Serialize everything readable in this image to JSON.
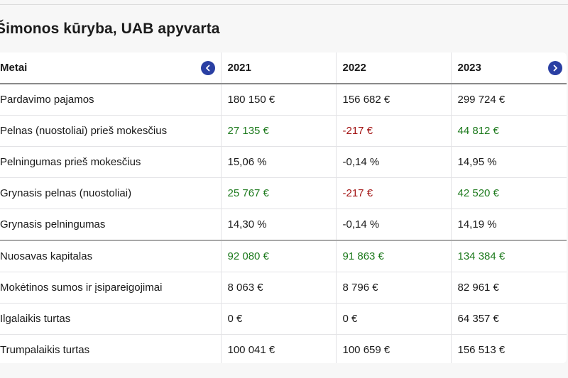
{
  "title": "Šimonos kūryba, UAB apyvarta",
  "table": {
    "header": {
      "label": "Metai",
      "years": [
        "2021",
        "2022",
        "2023"
      ]
    },
    "rows": [
      {
        "label": "Pardavimo pajamos",
        "values": [
          "180 150 €",
          "156 682 €",
          "299 724 €"
        ],
        "tones": [
          "",
          "",
          ""
        ]
      },
      {
        "label": "Pelnas (nuostoliai) prieš mokesčius",
        "values": [
          "27 135 €",
          "-217 €",
          "44 812 €"
        ],
        "tones": [
          "pos",
          "neg",
          "pos"
        ]
      },
      {
        "label": "Pelningumas prieš mokesčius",
        "values": [
          "15,06 %",
          "-0,14 %",
          "14,95 %"
        ],
        "tones": [
          "",
          "",
          ""
        ]
      },
      {
        "label": "Grynasis pelnas (nuostoliai)",
        "values": [
          "25 767 €",
          "-217 €",
          "42 520 €"
        ],
        "tones": [
          "pos",
          "neg",
          "pos"
        ]
      },
      {
        "label": "Grynasis pelningumas",
        "values": [
          "14,30 %",
          "-0,14 %",
          "14,19 %"
        ],
        "tones": [
          "",
          "",
          ""
        ]
      },
      {
        "label": "Nuosavas kapitalas",
        "values": [
          "92 080 €",
          "91 863 €",
          "134 384 €"
        ],
        "tones": [
          "pos",
          "pos",
          "pos"
        ]
      },
      {
        "label": "Mokėtinos sumos ir įsipareigojimai",
        "values": [
          "8 063 €",
          "8 796 €",
          "82 961 €"
        ],
        "tones": [
          "",
          "",
          ""
        ]
      },
      {
        "label": "Ilgalaikis turtas",
        "values": [
          "0 €",
          "0 €",
          "64 357 €"
        ],
        "tones": [
          "",
          "",
          ""
        ]
      },
      {
        "label": "Trumpalaikis turtas",
        "values": [
          "100 041 €",
          "100 659 €",
          "156 513 €"
        ],
        "tones": [
          "",
          "",
          ""
        ]
      }
    ]
  },
  "icons": {
    "prev": "chevron-left-icon",
    "next": "chevron-right-icon"
  },
  "colors": {
    "positive": "#1d7a1d",
    "negative": "#a31515",
    "nav_button": "#2a3fa3"
  }
}
